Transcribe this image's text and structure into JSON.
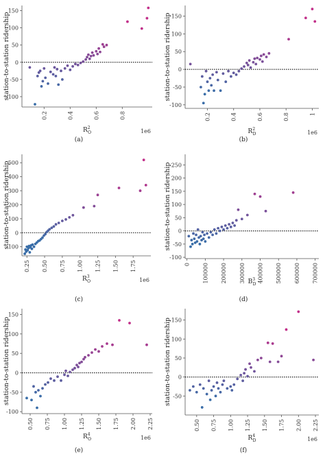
{
  "chart_data": [
    {
      "type": "scatter",
      "panel_label": "(a)",
      "ylabel": "station-to-station ridership",
      "xlabel": "R",
      "xlabel_sup": "2",
      "xlabel_sub": "O",
      "sci_note": "1e6",
      "xlim": [
        0.03,
        1.03
      ],
      "ylim": [
        -130,
        165
      ],
      "xticks": [
        0.2,
        0.4,
        0.6,
        0.8
      ],
      "yticks": [
        -100,
        -50,
        0,
        50,
        100,
        150
      ],
      "reference_line": 0,
      "points": [
        [
          0.09,
          -15
        ],
        [
          0.13,
          -122
        ],
        [
          0.15,
          -40
        ],
        [
          0.16,
          -30
        ],
        [
          0.17,
          -25
        ],
        [
          0.18,
          -70
        ],
        [
          0.19,
          -55
        ],
        [
          0.2,
          -18
        ],
        [
          0.21,
          -45
        ],
        [
          0.23,
          -62
        ],
        [
          0.25,
          -28
        ],
        [
          0.27,
          -35
        ],
        [
          0.28,
          -15
        ],
        [
          0.29,
          -40
        ],
        [
          0.3,
          -20
        ],
        [
          0.31,
          -65
        ],
        [
          0.33,
          -25
        ],
        [
          0.34,
          -50
        ],
        [
          0.36,
          -18
        ],
        [
          0.38,
          -10
        ],
        [
          0.4,
          -22
        ],
        [
          0.42,
          -12
        ],
        [
          0.44,
          -5
        ],
        [
          0.46,
          -8
        ],
        [
          0.48,
          -2
        ],
        [
          0.5,
          2
        ],
        [
          0.52,
          8
        ],
        [
          0.53,
          15
        ],
        [
          0.54,
          22
        ],
        [
          0.55,
          10
        ],
        [
          0.56,
          18
        ],
        [
          0.57,
          28
        ],
        [
          0.58,
          20
        ],
        [
          0.6,
          32
        ],
        [
          0.61,
          24
        ],
        [
          0.62,
          40
        ],
        [
          0.63,
          30
        ],
        [
          0.65,
          52
        ],
        [
          0.66,
          45
        ],
        [
          0.68,
          50
        ],
        [
          0.84,
          118
        ],
        [
          0.95,
          98
        ],
        [
          0.99,
          128
        ],
        [
          1.0,
          158
        ]
      ]
    },
    {
      "type": "scatter",
      "panel_label": "(b)",
      "ylabel": "station-to-station ridership",
      "xlabel": "R",
      "xlabel_sup": "2",
      "xlabel_sub": "D",
      "sci_note": "1e6",
      "xlim": [
        0.03,
        1.05
      ],
      "ylim": [
        -110,
        180
      ],
      "xticks": [
        0.2,
        0.4,
        0.6,
        0.8,
        1.0
      ],
      "yticks": [
        -100,
        -50,
        0,
        50,
        100,
        150
      ],
      "reference_line": 0,
      "points": [
        [
          0.07,
          15
        ],
        [
          0.15,
          -50
        ],
        [
          0.16,
          -20
        ],
        [
          0.17,
          -95
        ],
        [
          0.18,
          -70
        ],
        [
          0.19,
          -5
        ],
        [
          0.2,
          -35
        ],
        [
          0.21,
          -60
        ],
        [
          0.22,
          -25
        ],
        [
          0.23,
          -45
        ],
        [
          0.24,
          -15
        ],
        [
          0.25,
          -60
        ],
        [
          0.27,
          -8
        ],
        [
          0.28,
          -30
        ],
        [
          0.3,
          -60
        ],
        [
          0.32,
          -12
        ],
        [
          0.34,
          -35
        ],
        [
          0.36,
          -5
        ],
        [
          0.38,
          -20
        ],
        [
          0.4,
          -10
        ],
        [
          0.42,
          -15
        ],
        [
          0.44,
          -5
        ],
        [
          0.46,
          2
        ],
        [
          0.48,
          8
        ],
        [
          0.5,
          18
        ],
        [
          0.51,
          12
        ],
        [
          0.52,
          25
        ],
        [
          0.53,
          5
        ],
        [
          0.55,
          20
        ],
        [
          0.56,
          30
        ],
        [
          0.57,
          15
        ],
        [
          0.58,
          32
        ],
        [
          0.6,
          28
        ],
        [
          0.61,
          38
        ],
        [
          0.62,
          22
        ],
        [
          0.63,
          42
        ],
        [
          0.65,
          35
        ],
        [
          0.67,
          45
        ],
        [
          0.82,
          85
        ],
        [
          0.95,
          145
        ],
        [
          1.0,
          170
        ],
        [
          1.02,
          135
        ]
      ]
    },
    {
      "type": "scatter",
      "panel_label": "(c)",
      "ylabel": "station-to-station ridership",
      "xlabel": "R",
      "xlabel_sup": "3",
      "xlabel_sub": "O",
      "sci_note": "1e6",
      "xlim": [
        0.18,
        2.0
      ],
      "ylim": [
        -165,
        560
      ],
      "xticks": [
        0.25,
        0.5,
        0.75,
        1.0,
        1.25,
        1.5,
        1.75
      ],
      "xticklabels": [
        "0.25",
        "0.50",
        "0.75",
        "1.00",
        "1.25",
        "1.50",
        "1.75"
      ],
      "yticks": [
        -100,
        0,
        100,
        200,
        300,
        400,
        500
      ],
      "reference_line": 0,
      "points": [
        [
          0.22,
          -150
        ],
        [
          0.23,
          -120
        ],
        [
          0.24,
          -135
        ],
        [
          0.25,
          -100
        ],
        [
          0.26,
          -125
        ],
        [
          0.27,
          -110
        ],
        [
          0.28,
          -95
        ],
        [
          0.29,
          -140
        ],
        [
          0.3,
          -105
        ],
        [
          0.31,
          -90
        ],
        [
          0.32,
          -115
        ],
        [
          0.33,
          -85
        ],
        [
          0.35,
          -100
        ],
        [
          0.37,
          -80
        ],
        [
          0.39,
          -70
        ],
        [
          0.41,
          -60
        ],
        [
          0.43,
          -55
        ],
        [
          0.45,
          -45
        ],
        [
          0.47,
          -35
        ],
        [
          0.49,
          -20
        ],
        [
          0.51,
          -10
        ],
        [
          0.53,
          5
        ],
        [
          0.55,
          15
        ],
        [
          0.57,
          25
        ],
        [
          0.6,
          35
        ],
        [
          0.63,
          45
        ],
        [
          0.66,
          60
        ],
        [
          0.7,
          70
        ],
        [
          0.75,
          85
        ],
        [
          0.8,
          95
        ],
        [
          0.85,
          110
        ],
        [
          0.9,
          125
        ],
        [
          1.05,
          180
        ],
        [
          1.2,
          190
        ],
        [
          1.25,
          270
        ],
        [
          1.55,
          320
        ],
        [
          1.85,
          300
        ],
        [
          1.9,
          520
        ],
        [
          1.93,
          340
        ]
      ]
    },
    {
      "type": "scatter",
      "panel_label": "(d)",
      "ylabel": "station-to-station ridership",
      "xlabel": "B",
      "xlabel_sup": "3",
      "xlabel_sub": "D",
      "sci_note": "",
      "xlim": [
        -10000,
        720000
      ],
      "ylim": [
        -105,
        290
      ],
      "xticks": [
        0,
        100000,
        200000,
        300000,
        400000,
        500000,
        600000,
        700000
      ],
      "yticks": [
        -100,
        -50,
        0,
        50,
        100,
        150,
        200,
        250
      ],
      "reference_line": 0,
      "points": [
        [
          10000,
          -20
        ],
        [
          20000,
          -60
        ],
        [
          25000,
          -35
        ],
        [
          30000,
          -50
        ],
        [
          35000,
          -10
        ],
        [
          40000,
          -30
        ],
        [
          45000,
          -45
        ],
        [
          50000,
          -15
        ],
        [
          55000,
          -40
        ],
        [
          60000,
          5
        ],
        [
          65000,
          -25
        ],
        [
          70000,
          -50
        ],
        [
          75000,
          -20
        ],
        [
          80000,
          -35
        ],
        [
          85000,
          -5
        ],
        [
          90000,
          -30
        ],
        [
          95000,
          -15
        ],
        [
          100000,
          -40
        ],
        [
          110000,
          -10
        ],
        [
          120000,
          -25
        ],
        [
          130000,
          -5
        ],
        [
          140000,
          -15
        ],
        [
          150000,
          5
        ],
        [
          160000,
          -10
        ],
        [
          170000,
          10
        ],
        [
          180000,
          0
        ],
        [
          190000,
          15
        ],
        [
          200000,
          5
        ],
        [
          210000,
          20
        ],
        [
          220000,
          10
        ],
        [
          230000,
          25
        ],
        [
          240000,
          15
        ],
        [
          250000,
          30
        ],
        [
          260000,
          20
        ],
        [
          270000,
          40
        ],
        [
          280000,
          80
        ],
        [
          300000,
          45
        ],
        [
          330000,
          60
        ],
        [
          370000,
          140
        ],
        [
          400000,
          130
        ],
        [
          430000,
          75
        ],
        [
          580000,
          145
        ]
      ]
    },
    {
      "type": "scatter",
      "panel_label": "(e)",
      "ylabel": "station-to-station ridership",
      "xlabel": "R",
      "xlabel_sup": "4",
      "xlabel_sub": "O",
      "sci_note": "1e6",
      "xlim": [
        0.38,
        2.28
      ],
      "ylim": [
        -105,
        165
      ],
      "xticks": [
        0.5,
        0.75,
        1.0,
        1.25,
        1.5,
        1.75,
        2.0,
        2.25
      ],
      "xticklabels": [
        "0.50",
        "0.75",
        "1.00",
        "1.25",
        "1.50",
        "1.75",
        "2.00",
        "2.25"
      ],
      "yticks": [
        -100,
        -50,
        0,
        50,
        100,
        150
      ],
      "reference_line": 0,
      "points": [
        [
          0.45,
          -65
        ],
        [
          0.52,
          -70
        ],
        [
          0.55,
          -35
        ],
        [
          0.58,
          -50
        ],
        [
          0.6,
          -90
        ],
        [
          0.62,
          -45
        ],
        [
          0.65,
          -60
        ],
        [
          0.68,
          -40
        ],
        [
          0.72,
          -30
        ],
        [
          0.76,
          -25
        ],
        [
          0.8,
          -15
        ],
        [
          0.85,
          -20
        ],
        [
          0.9,
          -10
        ],
        [
          0.95,
          -20
        ],
        [
          1.0,
          -5
        ],
        [
          1.02,
          5
        ],
        [
          1.05,
          -8
        ],
        [
          1.08,
          2
        ],
        [
          1.12,
          8
        ],
        [
          1.15,
          12
        ],
        [
          1.18,
          20
        ],
        [
          1.2,
          15
        ],
        [
          1.22,
          25
        ],
        [
          1.25,
          28
        ],
        [
          1.28,
          35
        ],
        [
          1.3,
          40
        ],
        [
          1.35,
          45
        ],
        [
          1.4,
          52
        ],
        [
          1.45,
          60
        ],
        [
          1.5,
          55
        ],
        [
          1.55,
          68
        ],
        [
          1.62,
          75
        ],
        [
          1.7,
          72
        ],
        [
          1.8,
          135
        ],
        [
          1.95,
          128
        ],
        [
          2.2,
          72
        ]
      ]
    },
    {
      "type": "scatter",
      "panel_label": "(f)",
      "ylabel": "station-to-station ridership",
      "xlabel": "R",
      "xlabel_sup": "4",
      "xlabel_sub": "D",
      "sci_note": "1e6",
      "xlim": [
        0.33,
        2.3
      ],
      "ylim": [
        -100,
        180
      ],
      "xticks": [
        0.5,
        0.75,
        1.0,
        1.25,
        1.5,
        1.75,
        2.0,
        2.25
      ],
      "xticklabels": [
        "0.50",
        "0.75",
        "1.00",
        "1.25",
        "1.50",
        "1.75",
        "2.00",
        "2.25"
      ],
      "yticks": [
        -50,
        0,
        50,
        100,
        150
      ],
      "reference_line": 0,
      "points": [
        [
          0.4,
          -35
        ],
        [
          0.45,
          -25
        ],
        [
          0.5,
          -40
        ],
        [
          0.55,
          -20
        ],
        [
          0.58,
          -80
        ],
        [
          0.6,
          -30
        ],
        [
          0.65,
          -45
        ],
        [
          0.68,
          -10
        ],
        [
          0.7,
          -60
        ],
        [
          0.72,
          -35
        ],
        [
          0.75,
          -25
        ],
        [
          0.78,
          -50
        ],
        [
          0.8,
          -15
        ],
        [
          0.82,
          -30
        ],
        [
          0.85,
          -40
        ],
        [
          0.88,
          -20
        ],
        [
          0.9,
          -10
        ],
        [
          0.95,
          -30
        ],
        [
          1.0,
          -25
        ],
        [
          1.02,
          -35
        ],
        [
          1.05,
          -20
        ],
        [
          1.1,
          -5
        ],
        [
          1.15,
          5
        ],
        [
          1.18,
          -10
        ],
        [
          1.2,
          10
        ],
        [
          1.22,
          20
        ],
        [
          1.25,
          2
        ],
        [
          1.28,
          35
        ],
        [
          1.3,
          25
        ],
        [
          1.35,
          15
        ],
        [
          1.4,
          45
        ],
        [
          1.45,
          50
        ],
        [
          1.55,
          90
        ],
        [
          1.58,
          40
        ],
        [
          1.62,
          88
        ],
        [
          1.7,
          40
        ],
        [
          1.75,
          55
        ],
        [
          1.82,
          125
        ],
        [
          2.0,
          172
        ],
        [
          2.22,
          45
        ]
      ]
    }
  ],
  "colors": {
    "low": "#3a6ea8",
    "high": "#c2308a",
    "axis": "#555555",
    "reference_line": "#222222"
  }
}
